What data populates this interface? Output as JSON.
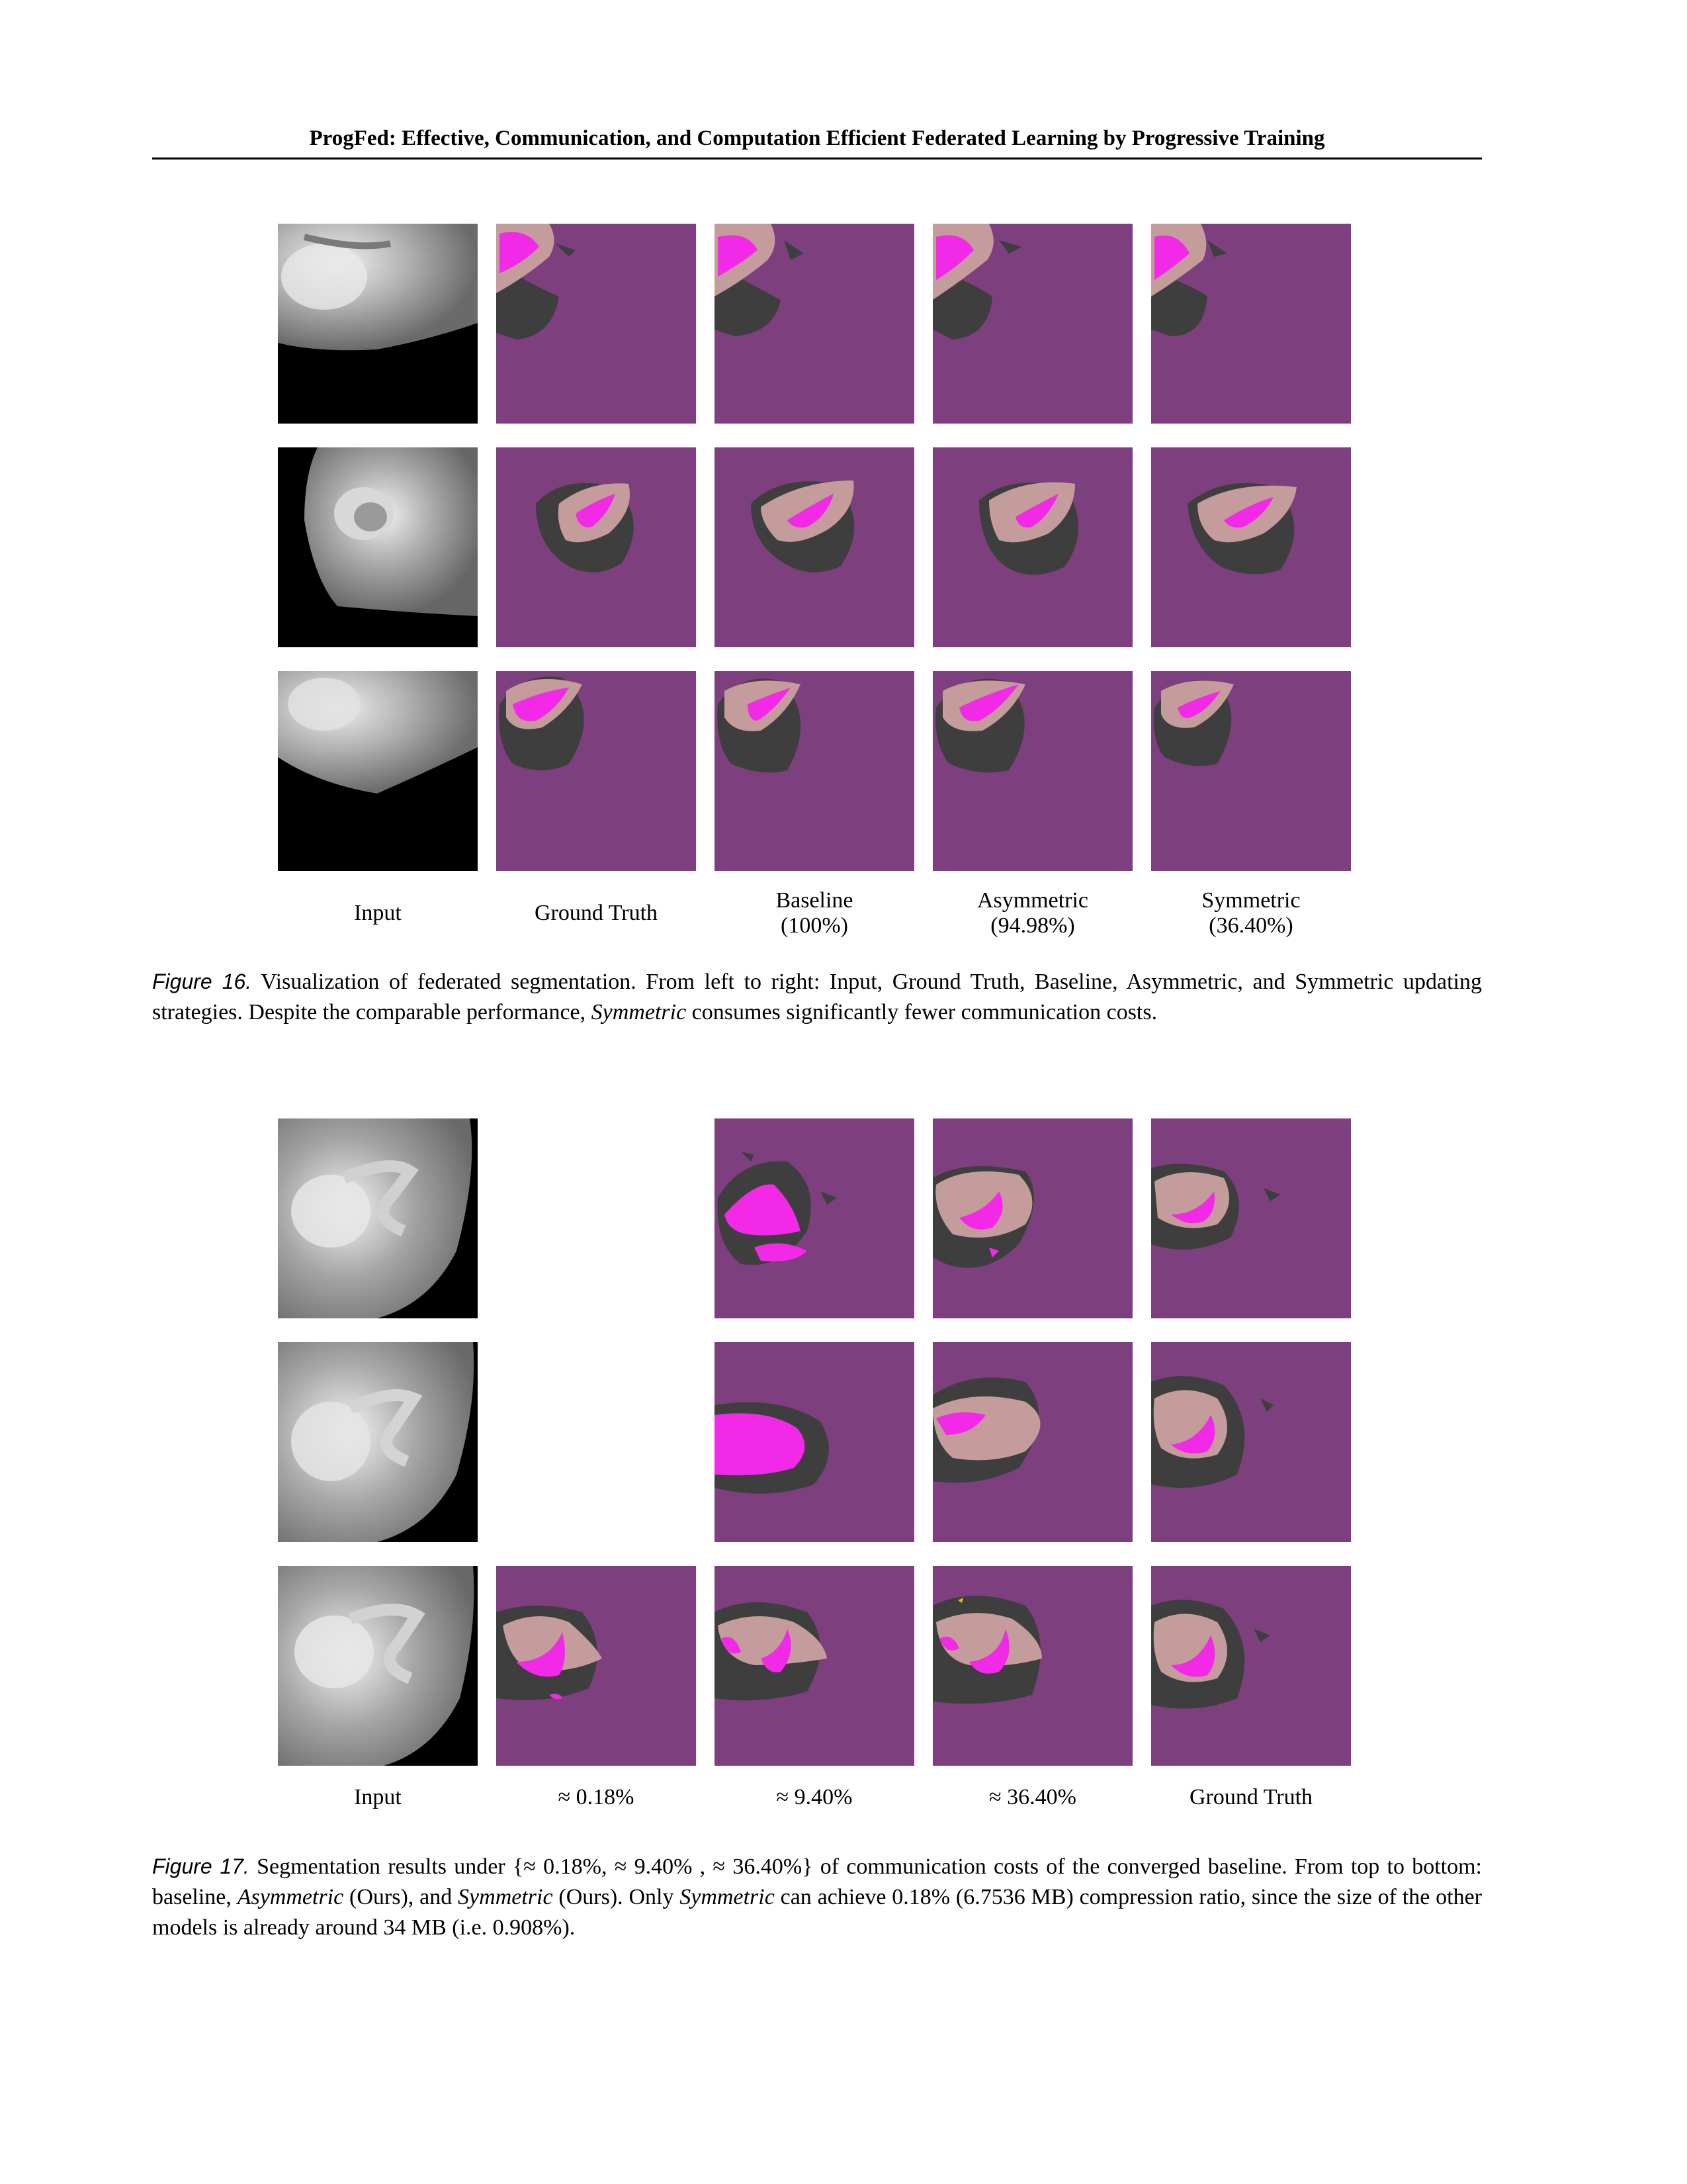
{
  "running_head": "ProgFed: Effective, Communication, and Computation Efficient Federated Learning by Progressive Training",
  "figure16": {
    "columns": [
      {
        "line1": "Input",
        "line2": ""
      },
      {
        "line1": "Ground Truth",
        "line2": ""
      },
      {
        "line1": "Baseline",
        "line2": "(100%)"
      },
      {
        "line1": "Asymmetric",
        "line2": "(94.98%)"
      },
      {
        "line1": "Symmetric",
        "line2": "(36.40%)"
      }
    ],
    "caption": {
      "label": "Figure 16.",
      "part1": " Visualization of federated segmentation. From left to right: Input, Ground Truth, Baseline, Asymmetric, and Symmetric updating strategies. Despite the comparable performance, ",
      "emph": "Symmetric",
      "part2": " consumes significantly fewer communication costs."
    }
  },
  "figure17": {
    "columns": [
      "Input",
      "≈ 0.18%",
      "≈ 9.40%",
      "≈ 36.40%",
      "Ground Truth"
    ],
    "caption": {
      "label": "Figure 17.",
      "t1": " Segmentation results under {≈ 0.18%, ≈ 9.40% , ≈ 36.40%} of communication costs of the converged baseline. From top to bottom: baseline, ",
      "e1": "Asymmetric",
      "t2": " (Ours), and ",
      "e2": "Symmetric",
      "t3": " (Ours). Only ",
      "e3": "Symmetric",
      "t4": " can achieve 0.18% (6.7536 MB) compression ratio, since the size of the other models is already around 34 MB (i.e. 0.908%)."
    }
  },
  "colors": {
    "background_class": "#7e3f7e",
    "edema": "#c49c9c",
    "enhancing": "#f22ae8",
    "necrotic": "#3e3e3e"
  }
}
